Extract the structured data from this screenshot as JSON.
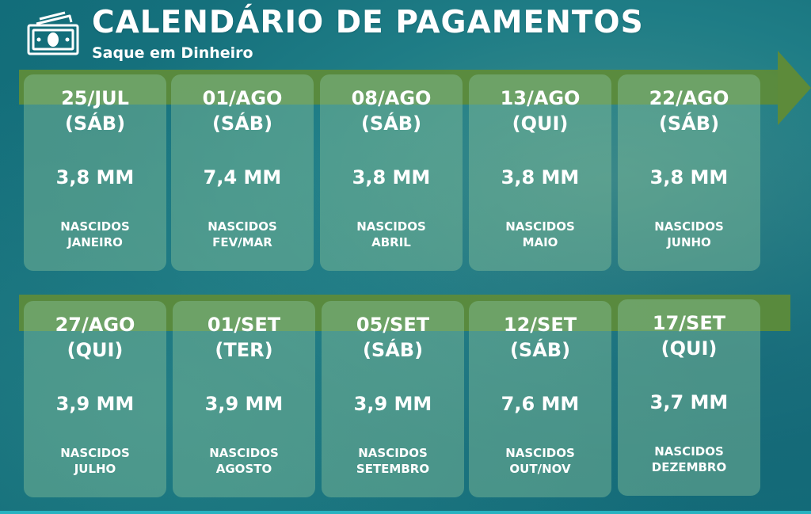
{
  "title": "CALENDÁRIO DE PAGAMENTOS",
  "subtitle": "Saque em Dinheiro",
  "icons": {
    "header": "money-bill-icon"
  },
  "colors": {
    "arrow": "#5d8b3a",
    "card": "#84be98",
    "background": "#1f7d86"
  },
  "rows": [
    {
      "cards": [
        {
          "date": "25/JUL",
          "weekday": "(SÁB)",
          "amount": "3,8 MM",
          "label_line1": "NASCIDOS",
          "label_line2": "JANEIRO"
        },
        {
          "date": "01/AGO",
          "weekday": "(SÁB)",
          "amount": "7,4 MM",
          "label_line1": "NASCIDOS",
          "label_line2": "FEV/MAR"
        },
        {
          "date": "08/AGO",
          "weekday": "(SÁB)",
          "amount": "3,8 MM",
          "label_line1": "NASCIDOS",
          "label_line2": "ABRIL"
        },
        {
          "date": "13/AGO",
          "weekday": "(QUI)",
          "amount": "3,8 MM",
          "label_line1": "NASCIDOS",
          "label_line2": "MAIO"
        },
        {
          "date": "22/AGO",
          "weekday": "(SÁB)",
          "amount": "3,8 MM",
          "label_line1": "NASCIDOS",
          "label_line2": "JUNHO"
        }
      ]
    },
    {
      "cards": [
        {
          "date": "27/AGO",
          "weekday": "(QUI)",
          "amount": "3,9 MM",
          "label_line1": "NASCIDOS",
          "label_line2": "JULHO"
        },
        {
          "date": "01/SET",
          "weekday": "(TER)",
          "amount": "3,9 MM",
          "label_line1": "NASCIDOS",
          "label_line2": "AGOSTO"
        },
        {
          "date": "05/SET",
          "weekday": "(SÁB)",
          "amount": "3,9 MM",
          "label_line1": "NASCIDOS",
          "label_line2": "SETEMBRO"
        },
        {
          "date": "12/SET",
          "weekday": "(SÁB)",
          "amount": "7,6 MM",
          "label_line1": "NASCIDOS",
          "label_line2": "OUT/NOV"
        },
        {
          "date": "17/SET",
          "weekday": "(QUI)",
          "amount": "3,7 MM",
          "label_line1": "NASCIDOS",
          "label_line2": "DEZEMBRO"
        }
      ]
    }
  ]
}
